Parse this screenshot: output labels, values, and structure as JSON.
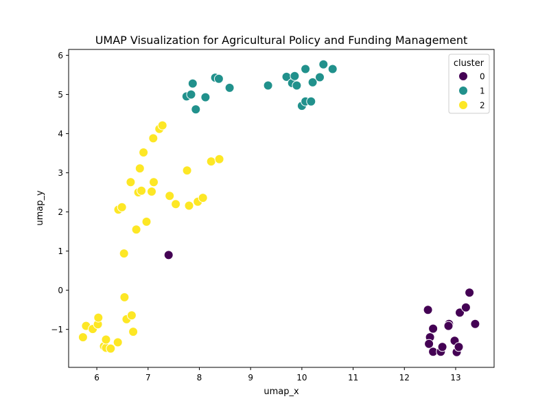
{
  "chart_data": {
    "type": "scatter",
    "title": "UMAP Visualization for Agricultural Policy and Funding Management",
    "xlabel": "umap_x",
    "ylabel": "umap_y",
    "xlim": [
      5.45,
      13.75
    ],
    "ylim": [
      -1.97,
      6.15
    ],
    "x_ticks": [
      "6",
      "7",
      "8",
      "9",
      "10",
      "11",
      "12",
      "13"
    ],
    "y_ticks": [
      "−1",
      "0",
      "1",
      "2",
      "3",
      "4",
      "5",
      "6"
    ],
    "grid": false,
    "legend": {
      "title": "cluster",
      "position": "top-right"
    },
    "series": [
      {
        "name": "0",
        "color": "#440154",
        "points": [
          [
            7.4,
            0.9
          ],
          [
            12.46,
            -0.5
          ],
          [
            12.5,
            -1.2
          ],
          [
            12.48,
            -1.37
          ],
          [
            12.56,
            -0.98
          ],
          [
            12.56,
            -1.57
          ],
          [
            12.71,
            -1.57
          ],
          [
            12.74,
            -1.45
          ],
          [
            12.87,
            -0.86
          ],
          [
            12.86,
            -0.91
          ],
          [
            12.98,
            -1.29
          ],
          [
            13.02,
            -1.58
          ],
          [
            13.06,
            -1.45
          ],
          [
            13.08,
            -0.57
          ],
          [
            13.2,
            -0.44
          ],
          [
            13.27,
            -0.06
          ],
          [
            13.38,
            -0.86
          ]
        ]
      },
      {
        "name": "1",
        "color": "#21918c",
        "points": [
          [
            7.75,
            4.95
          ],
          [
            7.84,
            5.0
          ],
          [
            7.87,
            5.28
          ],
          [
            7.93,
            4.62
          ],
          [
            8.12,
            4.93
          ],
          [
            8.31,
            5.43
          ],
          [
            8.38,
            5.4
          ],
          [
            8.59,
            5.17
          ],
          [
            9.34,
            5.23
          ],
          [
            9.7,
            5.45
          ],
          [
            9.81,
            5.29
          ],
          [
            9.86,
            5.47
          ],
          [
            9.9,
            5.23
          ],
          [
            10.0,
            4.71
          ],
          [
            10.07,
            4.82
          ],
          [
            10.07,
            5.65
          ],
          [
            10.18,
            4.82
          ],
          [
            10.21,
            5.31
          ],
          [
            10.35,
            5.44
          ],
          [
            10.42,
            5.77
          ],
          [
            10.6,
            5.65
          ]
        ]
      },
      {
        "name": "2",
        "color": "#fde725",
        "points": [
          [
            5.73,
            -1.2
          ],
          [
            5.79,
            -0.91
          ],
          [
            5.92,
            -0.99
          ],
          [
            6.02,
            -0.87
          ],
          [
            6.03,
            -0.7
          ],
          [
            6.14,
            -1.43
          ],
          [
            6.18,
            -1.47
          ],
          [
            6.18,
            -1.26
          ],
          [
            6.27,
            -1.49
          ],
          [
            6.41,
            -1.33
          ],
          [
            6.54,
            -0.18
          ],
          [
            6.58,
            -0.74
          ],
          [
            6.68,
            -0.64
          ],
          [
            6.71,
            -1.06
          ],
          [
            6.53,
            0.94
          ],
          [
            6.42,
            2.06
          ],
          [
            6.49,
            2.12
          ],
          [
            6.66,
            2.76
          ],
          [
            6.77,
            1.55
          ],
          [
            6.81,
            2.5
          ],
          [
            6.84,
            3.11
          ],
          [
            6.87,
            2.54
          ],
          [
            6.91,
            3.52
          ],
          [
            6.97,
            1.75
          ],
          [
            7.07,
            2.52
          ],
          [
            7.1,
            3.88
          ],
          [
            7.11,
            2.76
          ],
          [
            7.22,
            4.12
          ],
          [
            7.28,
            4.21
          ],
          [
            7.42,
            2.41
          ],
          [
            7.54,
            2.2
          ],
          [
            7.76,
            3.06
          ],
          [
            7.8,
            2.16
          ],
          [
            7.97,
            2.26
          ],
          [
            8.07,
            2.36
          ],
          [
            8.23,
            3.29
          ],
          [
            8.39,
            3.35
          ]
        ]
      }
    ]
  }
}
